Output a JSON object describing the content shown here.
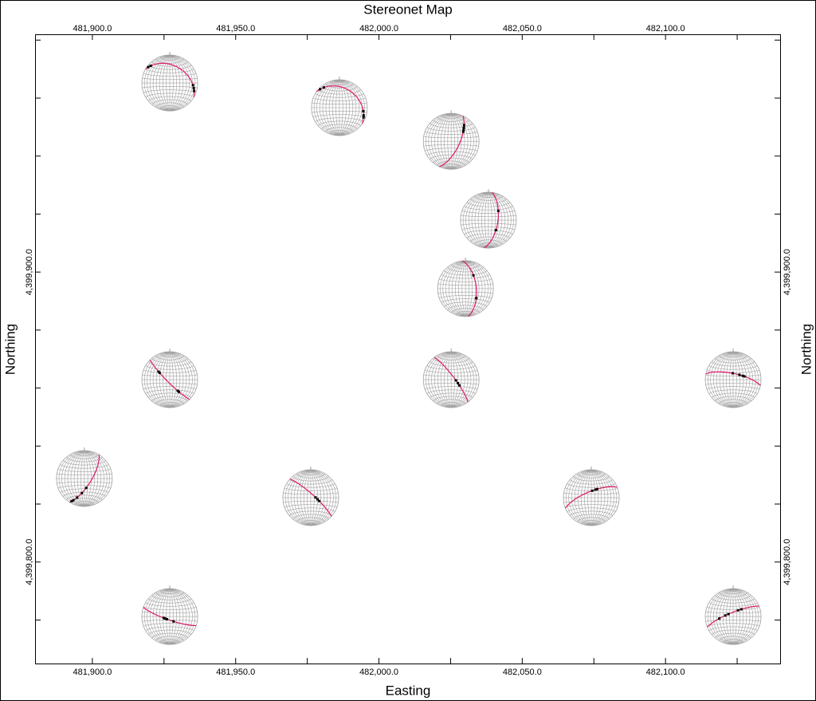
{
  "chart_data": {
    "type": "stereonet-map",
    "title": "Stereonet Map",
    "x_label": "Easting",
    "y_label": "Northing",
    "xlim": [
      481880,
      482140
    ],
    "ylim": [
      4399765,
      4399982
    ],
    "xticks": [
      {
        "value": 481900,
        "label": "481,900.0"
      },
      {
        "value": 481950,
        "label": "481,950.0"
      },
      {
        "value": 482000,
        "label": "482,000.0"
      },
      {
        "value": 482050,
        "label": "482,050.0"
      },
      {
        "value": 482100,
        "label": "482,100.0"
      }
    ],
    "x_minor_ticks": [
      481925,
      481975,
      482025,
      482075,
      482125
    ],
    "yticks": [
      {
        "value": 4399800,
        "label": "4,399,800.0"
      },
      {
        "value": 4399900,
        "label": "4,399,900.0"
      }
    ],
    "y_minor_ticks": [
      4399780,
      4399820,
      4399840,
      4399860,
      4399880,
      4399920,
      4399940,
      4399960,
      4399980
    ],
    "plane_color": "#e0186c",
    "point_color": "#000000",
    "net_color": "#a0a0a0",
    "stereonets": [
      {
        "easting": 481927.0,
        "northing": 4399965.2,
        "dip_direction": 30,
        "dip": 37,
        "rakes": [
          8,
          15,
          150,
          158,
          165
        ]
      },
      {
        "easting": 481986.2,
        "northing": 4399956.7,
        "dip_direction": 35,
        "dip": 30,
        "rakes": [
          10,
          20,
          150,
          160,
          165
        ]
      },
      {
        "easting": 482025.2,
        "northing": 4399945.1,
        "dip_direction": 115,
        "dip": 65,
        "rakes": [
          30,
          38,
          45,
          50
        ]
      },
      {
        "easting": 482038.2,
        "northing": 4399917.9,
        "dip_direction": 98,
        "dip": 62,
        "rakes": [
          60,
          115
        ]
      },
      {
        "easting": 482030.2,
        "northing": 4399894.3,
        "dip_direction": 84,
        "dip": 58,
        "rakes": [
          55,
          120
        ]
      },
      {
        "easting": 481927.0,
        "northing": 4399862.9,
        "dip_direction": 225,
        "dip": 82,
        "rakes": [
          45,
          50,
          125,
          130
        ]
      },
      {
        "easting": 482025.2,
        "northing": 4399862.9,
        "dip_direction": 53,
        "dip": 80,
        "rakes": [
          100,
          110,
          118
        ]
      },
      {
        "easting": 482123.6,
        "northing": 4399862.9,
        "dip_direction": 12,
        "dip": 72,
        "rakes": [
          85,
          105,
          115,
          120
        ]
      },
      {
        "easting": 481897.2,
        "northing": 4399828.8,
        "dip_direction": 122,
        "dip": 70,
        "rakes": [
          110,
          130,
          150,
          165,
          172
        ]
      },
      {
        "easting": 481976.2,
        "northing": 4399822.2,
        "dip_direction": 42,
        "dip": 80,
        "rakes": [
          100,
          108,
          115
        ]
      },
      {
        "easting": 482074.1,
        "northing": 4399822.2,
        "dip_direction": 338,
        "dip": 72,
        "rakes": [
          100,
          110,
          115
        ]
      },
      {
        "easting": 481927.0,
        "northing": 4399781.2,
        "dip_direction": 199,
        "dip": 80,
        "rakes": [
          75,
          95,
          100,
          105
        ]
      },
      {
        "easting": 482123.6,
        "northing": 4399781.2,
        "dip_direction": 338,
        "dip": 78,
        "rakes": [
          50,
          70,
          80,
          110,
          120
        ]
      }
    ]
  }
}
